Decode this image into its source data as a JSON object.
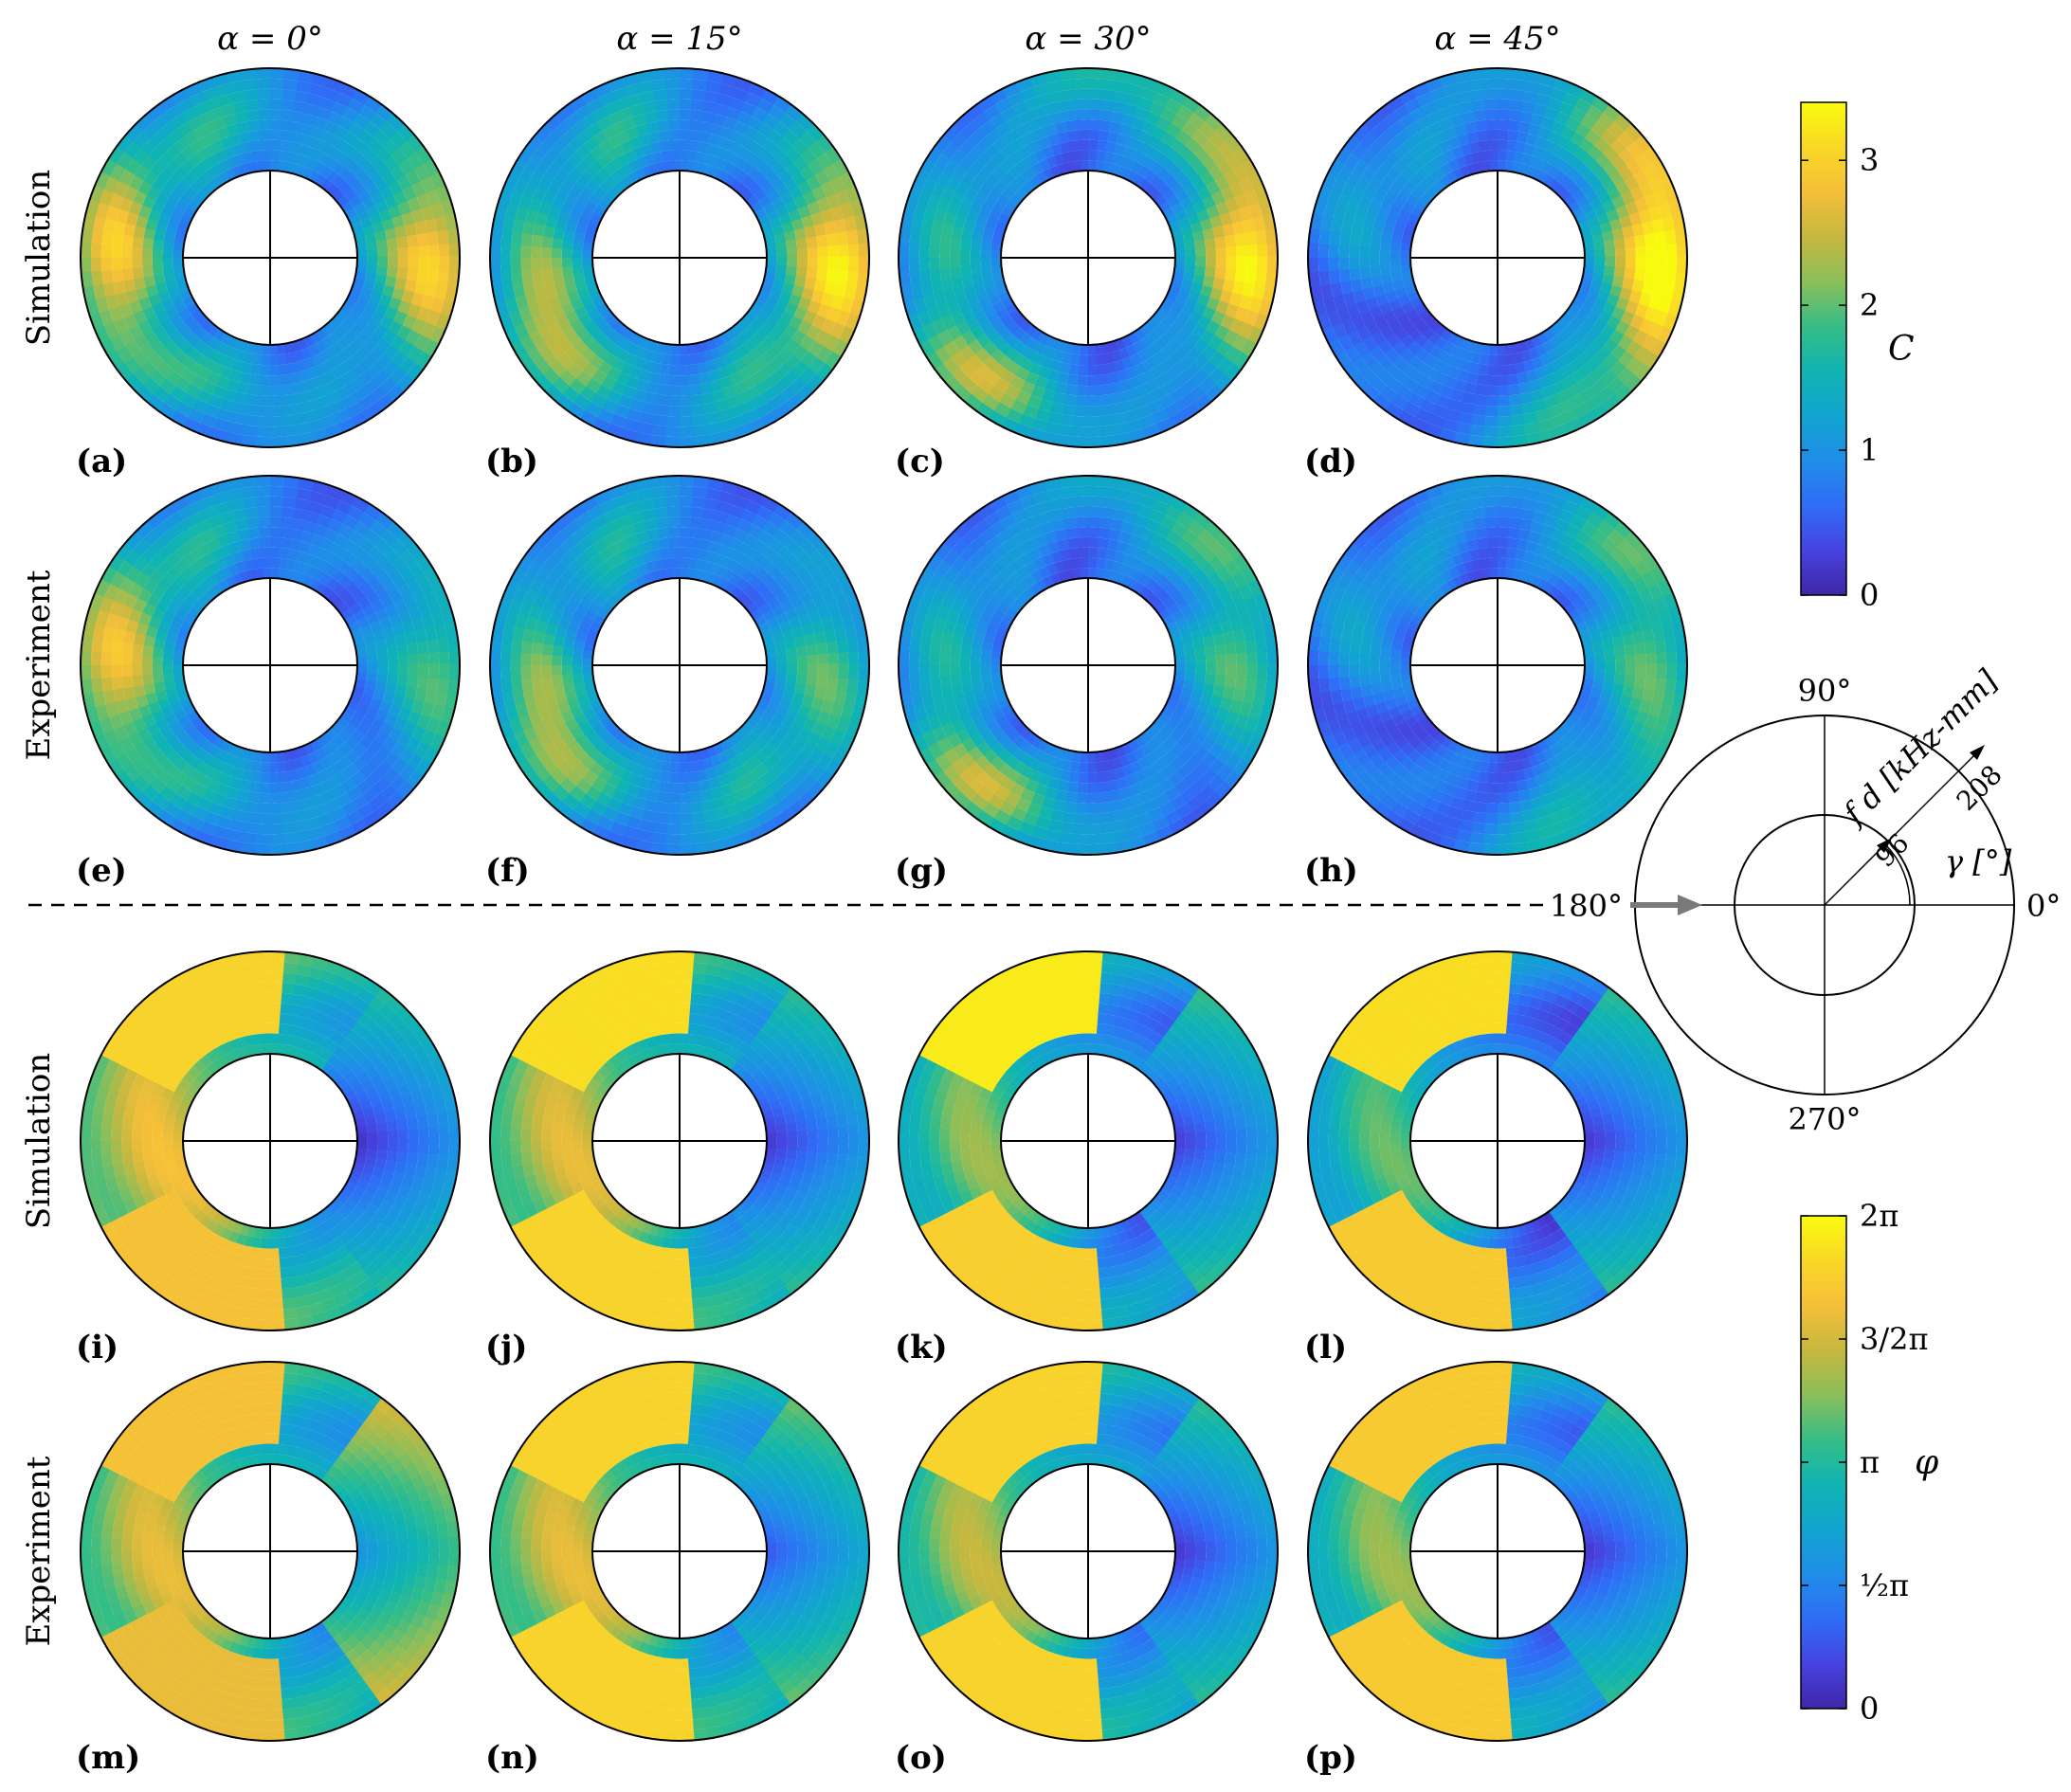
{
  "chart_data": {
    "type": "heatmap",
    "column_headers": [
      "α = 0°",
      "α = 15°",
      "α = 30°",
      "α = 45°"
    ],
    "row_labels": [
      "Simulation",
      "Experiment",
      "Simulation",
      "Experiment"
    ],
    "panel_labels": [
      "(a)",
      "(b)",
      "(c)",
      "(d)",
      "(e)",
      "(f)",
      "(g)",
      "(h)",
      "(i)",
      "(j)",
      "(k)",
      "(l)",
      "(m)",
      "(n)",
      "(o)",
      "(p)"
    ],
    "colorbar_C": {
      "label": "C",
      "range": [
        0,
        3.4
      ],
      "ticks": [
        "0",
        "1",
        "2",
        "3"
      ],
      "tick_values": [
        0,
        1,
        2,
        3
      ]
    },
    "colorbar_phi": {
      "label": "φ",
      "range": [
        0,
        6.2832
      ],
      "ticks": [
        "0",
        "½π",
        "π",
        "3/2π",
        "2π"
      ],
      "tick_values": [
        0,
        1.5708,
        3.1416,
        4.7124,
        6.2832
      ]
    },
    "polar_axis": {
      "angle_labels": [
        "90°",
        "180°",
        "270°",
        "0°"
      ],
      "radial_label": "f d [kHz-mm]",
      "angle_label": "γ [°]",
      "radius_labels": [
        "96",
        "208"
      ],
      "radius_values": [
        96,
        208
      ]
    },
    "panels": [
      {
        "id": "a",
        "kind": "C",
        "alpha": 0,
        "source": "simulation",
        "features": [
          [
            0,
            3.0,
            0.75,
            0.42
          ],
          [
            180,
            2.9,
            0.7,
            0.35
          ],
          [
            110,
            1.5,
            0.5,
            0.35
          ],
          [
            250,
            1.5,
            0.5,
            0.3
          ]
        ]
      },
      {
        "id": "b",
        "kind": "C",
        "alpha": 15,
        "source": "simulation",
        "features": [
          [
            0,
            3.2,
            0.75,
            0.42
          ],
          [
            205,
            2.7,
            0.55,
            0.32
          ],
          [
            120,
            1.6,
            0.5,
            0.35
          ],
          [
            300,
            1.4,
            0.5,
            0.3
          ]
        ]
      },
      {
        "id": "c",
        "kind": "C",
        "alpha": 30,
        "source": "simulation",
        "features": [
          [
            0,
            3.3,
            0.75,
            0.4
          ],
          [
            230,
            2.4,
            0.7,
            0.3
          ],
          [
            70,
            1.8,
            0.9,
            0.3
          ],
          [
            160,
            1.5,
            0.5,
            0.3
          ]
        ]
      },
      {
        "id": "d",
        "kind": "C",
        "alpha": 45,
        "source": "simulation",
        "features": [
          [
            0,
            3.3,
            0.75,
            0.4
          ],
          [
            50,
            1.7,
            0.9,
            0.35
          ],
          [
            300,
            1.6,
            0.9,
            0.35
          ],
          [
            150,
            1.3,
            0.5,
            0.3
          ]
        ]
      },
      {
        "id": "e",
        "kind": "C",
        "alpha": 0,
        "source": "experiment",
        "features": [
          [
            180,
            2.7,
            0.7,
            0.4
          ],
          [
            0,
            1.9,
            0.85,
            0.45
          ],
          [
            120,
            1.4,
            0.5,
            0.3
          ],
          [
            250,
            1.4,
            0.5,
            0.3
          ]
        ]
      },
      {
        "id": "f",
        "kind": "C",
        "alpha": 15,
        "source": "experiment",
        "features": [
          [
            205,
            2.6,
            0.55,
            0.32
          ],
          [
            0,
            1.8,
            0.6,
            0.4
          ],
          [
            120,
            1.5,
            0.5,
            0.35
          ],
          [
            300,
            1.4,
            0.5,
            0.3
          ]
        ]
      },
      {
        "id": "g",
        "kind": "C",
        "alpha": 30,
        "source": "experiment",
        "features": [
          [
            230,
            2.4,
            0.7,
            0.3
          ],
          [
            0,
            1.8,
            0.6,
            0.4
          ],
          [
            60,
            1.7,
            0.9,
            0.3
          ],
          [
            160,
            1.4,
            0.5,
            0.3
          ]
        ]
      },
      {
        "id": "h",
        "kind": "C",
        "alpha": 45,
        "source": "experiment",
        "features": [
          [
            0,
            1.7,
            0.6,
            0.4
          ],
          [
            50,
            1.6,
            0.9,
            0.35
          ],
          [
            300,
            1.5,
            0.9,
            0.35
          ],
          [
            150,
            1.3,
            0.5,
            0.3
          ]
        ]
      },
      {
        "id": "i",
        "kind": "phi",
        "alpha": 0,
        "source": "simulation",
        "boundaries": [
          [
            0.3,
            0.9,
            0
          ],
          [
            2.7,
            3.3,
            1
          ],
          [
            5.2,
            5.8,
            0
          ]
        ],
        "levels": [
          0.2,
          5.6,
          3.2,
          5.2
        ]
      },
      {
        "id": "j",
        "kind": "phi",
        "alpha": 15,
        "source": "simulation",
        "boundaries": [
          [
            0.3,
            0.8,
            0
          ],
          [
            2.3,
            2.6,
            1
          ],
          [
            5.3,
            5.7,
            0
          ]
        ],
        "levels": [
          0.3,
          5.8,
          3.0,
          5.6
        ]
      },
      {
        "id": "k",
        "kind": "phi",
        "alpha": 30,
        "source": "simulation",
        "boundaries": [
          [
            0.25,
            0.6,
            0
          ],
          [
            1.7,
            2.3,
            1
          ],
          [
            4.0,
            4.6,
            0
          ]
        ],
        "levels": [
          0.4,
          6.0,
          2.2,
          5.5
        ]
      },
      {
        "id": "l",
        "kind": "phi",
        "alpha": 45,
        "source": "simulation",
        "boundaries": [
          [
            0.3,
            0.6,
            0
          ],
          [
            1.4,
            1.8,
            1
          ],
          [
            4.3,
            4.8,
            0
          ]
        ],
        "levels": [
          0.3,
          5.8,
          1.8,
          5.4
        ]
      },
      {
        "id": "m",
        "kind": "phi",
        "alpha": 0,
        "source": "experiment",
        "boundaries": [
          [
            0.5,
            1.2,
            0
          ],
          [
            2.6,
            3.1,
            1
          ],
          [
            5.0,
            5.7,
            0
          ]
        ],
        "levels": [
          1.8,
          5.2,
          3.0,
          5.0
        ]
      },
      {
        "id": "n",
        "kind": "phi",
        "alpha": 15,
        "source": "experiment",
        "boundaries": [
          [
            0.4,
            1.0,
            0
          ],
          [
            2.3,
            2.7,
            1
          ],
          [
            5.0,
            5.6,
            0
          ]
        ],
        "levels": [
          0.8,
          5.6,
          3.0,
          5.6
        ]
      },
      {
        "id": "o",
        "kind": "phi",
        "alpha": 30,
        "source": "experiment",
        "boundaries": [
          [
            0.35,
            0.9,
            0
          ],
          [
            2.1,
            2.7,
            1
          ],
          [
            4.6,
            5.3,
            0
          ]
        ],
        "levels": [
          0.3,
          5.6,
          2.6,
          5.6
        ]
      },
      {
        "id": "p",
        "kind": "phi",
        "alpha": 45,
        "source": "experiment",
        "boundaries": [
          [
            0.35,
            0.9,
            0
          ],
          [
            1.9,
            2.4,
            1
          ],
          [
            4.4,
            5.0,
            0
          ]
        ],
        "levels": [
          0.3,
          5.4,
          2.2,
          5.4
        ]
      }
    ]
  },
  "colors": {
    "parula": [
      "#3e26a8",
      "#4743e0",
      "#2f6df6",
      "#1f8ee8",
      "#12a4d0",
      "#10b4b2",
      "#36bd86",
      "#8bbe5a",
      "#c6b83f",
      "#f5bf39",
      "#f9d827",
      "#f9fb0e"
    ],
    "line": "#000000",
    "arrow": "#7a7a7a"
  }
}
